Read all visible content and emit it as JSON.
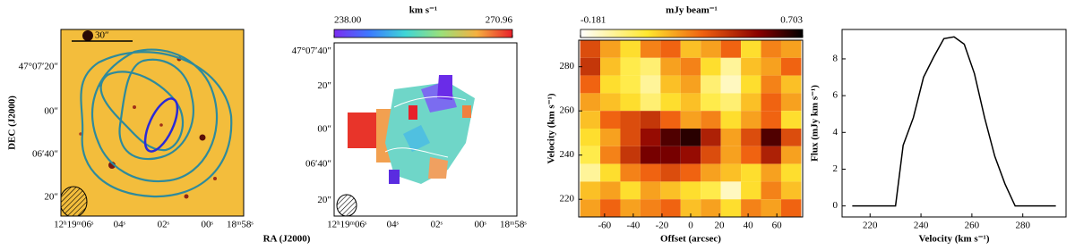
{
  "chart_data": [
    {
      "type": "image",
      "ylabel": "DEC (J2000)",
      "xlabel": "RA (J2000)",
      "scale_label": "30″",
      "xtick_labels": [
        "12ʰ19ᵐ06ˢ",
        "04ˢ",
        "02ˢ",
        "00ˢ",
        "18ᵐ58ˢ"
      ],
      "ytick_labels": [
        "47°07′20″",
        "00″",
        "06′40″",
        "20″"
      ]
    },
    {
      "type": "image",
      "colorbar_label": "km s⁻¹",
      "clim": [
        238,
        270.96
      ],
      "cticks": [
        {
          "value": 238,
          "label": "238.00"
        },
        270.96
      ],
      "xtick_labels": [
        "12ʰ19ᵐ06ˢ",
        "04ˢ",
        "02ˢ",
        "00ˢ",
        "18ᵐ58ˢ"
      ],
      "ytick_labels": [
        "47°07′40″",
        "20″",
        "00″",
        "06′40″",
        "20″"
      ]
    },
    {
      "type": "heatmap",
      "colorbar_label": "mJy beam⁻¹",
      "clim": [
        -0.181,
        0.703
      ],
      "cticks": [
        -0.181,
        0.703
      ],
      "xlabel": "Offset (arcsec)",
      "ylabel": "Velocity (km s⁻¹)",
      "xlim": [
        -78,
        78
      ],
      "xticks": [
        -60,
        -40,
        -20,
        0,
        20,
        40,
        60
      ],
      "ylim": [
        212,
        292
      ],
      "yticks": [
        220,
        240,
        260,
        280
      ],
      "x": [
        -70,
        -56,
        -42,
        -28,
        -14,
        0,
        14,
        28,
        42,
        56,
        70
      ],
      "y": [
        288,
        280,
        272,
        264,
        256,
        248,
        240,
        232,
        224,
        216
      ],
      "z": [
        [
          0.35,
          0.2,
          0.1,
          0.25,
          0.3,
          0.15,
          0.2,
          0.3,
          0.1,
          0.25,
          0.2
        ],
        [
          0.4,
          0.15,
          0.05,
          0.0,
          0.2,
          0.25,
          0.1,
          -0.05,
          0.15,
          0.2,
          0.3
        ],
        [
          0.3,
          0.1,
          0.05,
          -0.05,
          0.15,
          0.2,
          0.0,
          -0.1,
          0.1,
          0.25,
          0.15
        ],
        [
          0.2,
          0.15,
          0.1,
          0.0,
          0.1,
          0.15,
          0.05,
          0.0,
          0.15,
          0.3,
          0.2
        ],
        [
          0.15,
          0.3,
          0.35,
          0.4,
          0.3,
          0.2,
          0.25,
          0.1,
          0.2,
          0.3,
          0.1
        ],
        [
          0.1,
          0.2,
          0.35,
          0.5,
          0.6,
          0.65,
          0.45,
          0.2,
          0.35,
          0.6,
          0.35
        ],
        [
          0.05,
          0.25,
          0.4,
          0.55,
          0.55,
          0.5,
          0.35,
          0.2,
          0.3,
          0.45,
          0.2
        ],
        [
          -0.05,
          0.1,
          0.25,
          0.3,
          0.35,
          0.3,
          0.2,
          0.15,
          0.1,
          0.2,
          0.1
        ],
        [
          0.15,
          0.2,
          0.1,
          0.2,
          0.15,
          0.1,
          0.05,
          -0.1,
          0.1,
          0.25,
          0.15
        ],
        [
          0.2,
          0.3,
          0.2,
          0.25,
          0.3,
          0.15,
          0.2,
          0.1,
          0.25,
          0.2,
          0.3
        ]
      ]
    },
    {
      "type": "line",
      "xlabel": "Velocity (km s⁻¹)",
      "ylabel": "Flux (mJy km s⁻¹)",
      "color": "#000000",
      "xlim": [
        209,
        297
      ],
      "xticks": [
        220,
        240,
        260,
        280
      ],
      "ylim": [
        -0.6,
        9.6
      ],
      "yticks": [
        0,
        2,
        4,
        6,
        8
      ],
      "x": [
        213,
        230,
        233,
        237,
        241,
        245,
        249,
        253,
        257,
        261,
        265,
        269,
        273,
        277,
        281,
        293
      ],
      "values": [
        0,
        0,
        3.3,
        4.8,
        7.0,
        8.1,
        9.1,
        9.2,
        8.8,
        7.2,
        4.8,
        2.7,
        1.2,
        0,
        0,
        0
      ]
    }
  ]
}
